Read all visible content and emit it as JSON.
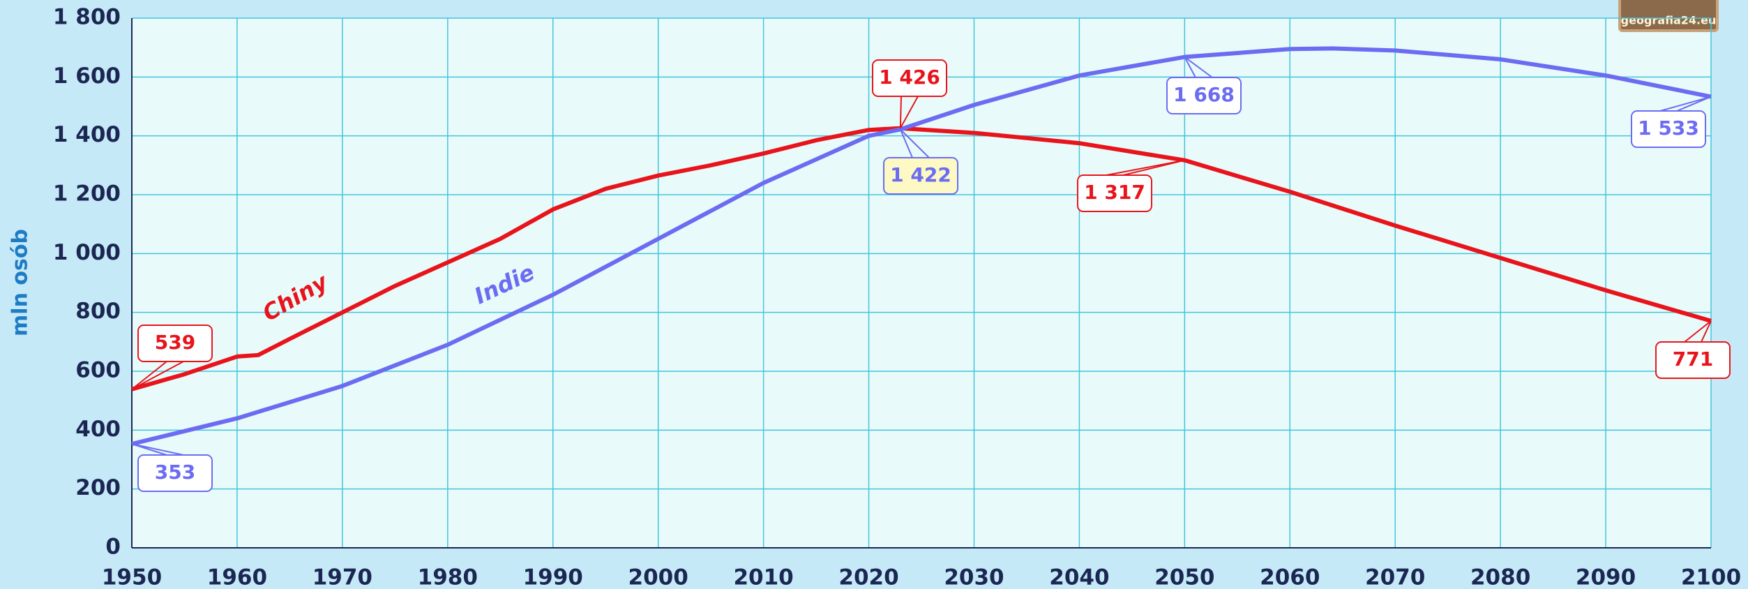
{
  "chart_data": {
    "type": "line",
    "y_label": "mln osób",
    "logo": "geografia24.eu",
    "xlim": [
      1950,
      2100
    ],
    "xticks": [
      1950,
      1960,
      1970,
      1980,
      1990,
      2000,
      2010,
      2020,
      2030,
      2040,
      2050,
      2060,
      2070,
      2080,
      2090,
      2100
    ],
    "ylim": [
      0,
      1800
    ],
    "yticks": [
      0,
      200,
      400,
      600,
      800,
      {
        "value": 1000,
        "label": "1 000"
      },
      {
        "value": 1200,
        "label": "1 200"
      },
      {
        "value": 1400,
        "label": "1 400"
      },
      {
        "value": 1600,
        "label": "1 600"
      },
      {
        "value": 1800,
        "label": "1 800"
      }
    ],
    "grid": true,
    "series": [
      {
        "name": "Chiny",
        "color": "#e8141c",
        "x": [
          1950,
          1955,
          1960,
          1962,
          1965,
          1970,
          1975,
          1980,
          1985,
          1990,
          1995,
          2000,
          2005,
          2010,
          2015,
          2020,
          2023,
          2030,
          2040,
          2050,
          2060,
          2070,
          2080,
          2090,
          2100
        ],
        "values": [
          539,
          590,
          650,
          655,
          710,
          800,
          890,
          970,
          1050,
          1150,
          1220,
          1265,
          1300,
          1340,
          1385,
          1420,
          1426,
          1410,
          1375,
          1317,
          1210,
          1095,
          985,
          875,
          771
        ]
      },
      {
        "name": "Indie",
        "color": "#6b6cf2",
        "x": [
          1950,
          1960,
          1970,
          1980,
          1990,
          2000,
          2010,
          2020,
          2023,
          2030,
          2040,
          2050,
          2060,
          2064,
          2070,
          2080,
          2090,
          2100
        ],
        "values": [
          353,
          440,
          550,
          690,
          860,
          1050,
          1240,
          1400,
          1422,
          1505,
          1605,
          1668,
          1695,
          1697,
          1690,
          1660,
          1605,
          1533
        ]
      }
    ],
    "annotations": [
      {
        "series": 0,
        "x": 1950,
        "value": 539,
        "label": "539"
      },
      {
        "series": 0,
        "x": 2023,
        "value": 1426,
        "label": "1 426"
      },
      {
        "series": 0,
        "x": 2050,
        "value": 1317,
        "label": "1 317"
      },
      {
        "series": 0,
        "x": 2100,
        "value": 771,
        "label": "771"
      },
      {
        "series": 1,
        "x": 1950,
        "value": 353,
        "label": "353"
      },
      {
        "series": 1,
        "x": 2023,
        "value": 1422,
        "label": "1 422"
      },
      {
        "series": 1,
        "x": 2050,
        "value": 1668,
        "label": "1 668"
      },
      {
        "series": 1,
        "x": 2100,
        "value": 1533,
        "label": "1 533"
      }
    ]
  }
}
